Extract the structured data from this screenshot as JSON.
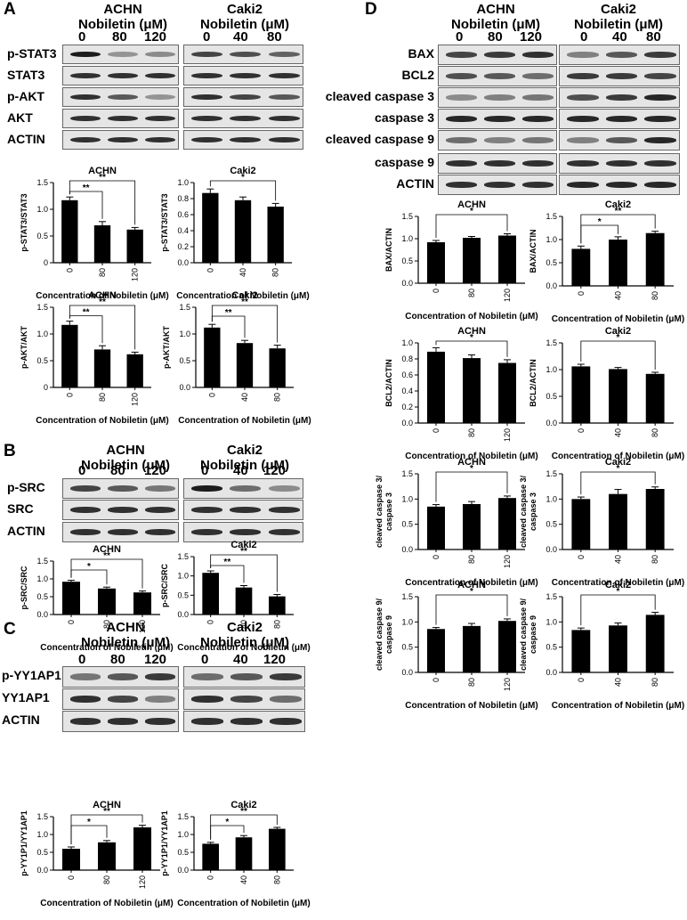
{
  "panel_labels": {
    "A": "A",
    "B": "B",
    "C": "C",
    "D": "D"
  },
  "cells": {
    "achn": "ACHN",
    "caki2": "Caki2"
  },
  "nobiletin_header": "Nobiletin (μM)",
  "doses": {
    "achn": [
      "0",
      "80",
      "120"
    ],
    "caki2_A": [
      "0",
      "40",
      "80"
    ],
    "caki2_B": [
      "0",
      "40",
      "120"
    ],
    "caki2_C": [
      "0",
      "40",
      "120"
    ],
    "caki2_D": [
      "0",
      "40",
      "80"
    ]
  },
  "proteins": {
    "A": [
      "p-STAT3",
      "STAT3",
      "p-AKT",
      "AKT",
      "ACTIN"
    ],
    "B": [
      "p-SRC",
      "SRC",
      "ACTIN"
    ],
    "C": [
      "p-YY1AP1",
      "YY1AP1",
      "ACTIN"
    ],
    "D": [
      "BAX",
      "BCL2",
      "cleaved caspase 3",
      "caspase 3",
      "cleaved caspase 9",
      "caspase 9",
      "ACTIN"
    ]
  },
  "band_intensity": {
    "A": {
      "achn": [
        [
          1.0,
          0.4,
          0.45
        ],
        [
          0.9,
          0.9,
          0.9
        ],
        [
          0.9,
          0.7,
          0.4
        ],
        [
          0.9,
          0.9,
          0.9
        ],
        [
          0.9,
          0.9,
          0.9
        ]
      ],
      "caki2": [
        [
          0.8,
          0.75,
          0.65
        ],
        [
          0.9,
          0.9,
          0.9
        ],
        [
          0.9,
          0.8,
          0.7
        ],
        [
          0.9,
          0.9,
          0.9
        ],
        [
          0.9,
          0.9,
          0.9
        ]
      ]
    },
    "B": {
      "achn": [
        [
          0.8,
          0.7,
          0.55
        ],
        [
          0.9,
          0.9,
          0.9
        ],
        [
          0.9,
          0.9,
          0.9
        ]
      ],
      "caki2": [
        [
          1.0,
          0.6,
          0.45
        ],
        [
          0.9,
          0.9,
          0.9
        ],
        [
          0.9,
          0.9,
          0.9
        ]
      ]
    },
    "C": {
      "achn": [
        [
          0.55,
          0.7,
          0.85
        ],
        [
          0.9,
          0.8,
          0.5
        ],
        [
          0.9,
          0.9,
          0.9
        ]
      ],
      "caki2": [
        [
          0.6,
          0.7,
          0.85
        ],
        [
          0.9,
          0.8,
          0.6
        ],
        [
          0.9,
          0.9,
          0.9
        ]
      ]
    },
    "D": {
      "achn": [
        [
          0.8,
          0.85,
          0.9
        ],
        [
          0.75,
          0.7,
          0.6
        ],
        [
          0.45,
          0.5,
          0.55
        ],
        [
          0.95,
          0.95,
          0.95
        ],
        [
          0.6,
          0.5,
          0.55
        ],
        [
          0.9,
          0.9,
          0.9
        ],
        [
          0.9,
          0.9,
          0.9
        ]
      ],
      "caki2": [
        [
          0.5,
          0.7,
          0.85
        ],
        [
          0.85,
          0.85,
          0.8
        ],
        [
          0.75,
          0.85,
          0.95
        ],
        [
          0.95,
          0.95,
          0.95
        ],
        [
          0.5,
          0.7,
          0.95
        ],
        [
          0.9,
          0.9,
          0.9
        ],
        [
          0.95,
          0.95,
          0.95
        ]
      ]
    }
  },
  "xlabel": "Concentration of Nobiletin (μM)",
  "chart_data": [
    {
      "id": "A1",
      "type": "bar",
      "title": "ACHN",
      "ylabel": "p-STAT3/STAT3",
      "categories": [
        "0",
        "80",
        "120"
      ],
      "values": [
        1.17,
        0.7,
        0.62
      ],
      "errors": [
        0.06,
        0.07,
        0.04
      ],
      "ylim": [
        0,
        1.5
      ],
      "yticks": [
        "0",
        "0.5",
        "1.0",
        "1.5"
      ],
      "sig": [
        {
          "from": 0,
          "to": 1,
          "label": "**"
        },
        {
          "from": 0,
          "to": 2,
          "label": "**"
        }
      ]
    },
    {
      "id": "A2",
      "type": "bar",
      "title": "Caki2",
      "ylabel": "p-STAT3/STAT3",
      "categories": [
        "0",
        "40",
        "80"
      ],
      "values": [
        0.87,
        0.78,
        0.7
      ],
      "errors": [
        0.05,
        0.04,
        0.04
      ],
      "ylim": [
        0,
        1.0
      ],
      "yticks": [
        "0.0",
        "0.2",
        "0.4",
        "0.6",
        "0.8",
        "1.0"
      ],
      "sig": [
        {
          "from": 0,
          "to": 2,
          "label": "*"
        }
      ]
    },
    {
      "id": "A3",
      "type": "bar",
      "title": "ACHN",
      "ylabel": "p-AKT/AKT",
      "categories": [
        "0",
        "80",
        "120"
      ],
      "values": [
        1.17,
        0.71,
        0.62
      ],
      "errors": [
        0.07,
        0.07,
        0.04
      ],
      "ylim": [
        0,
        1.5
      ],
      "yticks": [
        "0",
        "0.5",
        "1.0",
        "1.5"
      ],
      "sig": [
        {
          "from": 0,
          "to": 1,
          "label": "**"
        },
        {
          "from": 0,
          "to": 2,
          "label": "**"
        }
      ]
    },
    {
      "id": "A4",
      "type": "bar",
      "title": "Caki2",
      "ylabel": "p-AKT/AKT",
      "categories": [
        "0",
        "40",
        "80"
      ],
      "values": [
        1.12,
        0.83,
        0.73
      ],
      "errors": [
        0.06,
        0.05,
        0.06
      ],
      "ylim": [
        0,
        1.5
      ],
      "yticks": [
        "0.0",
        "0.5",
        "1.0",
        "1.5"
      ],
      "sig": [
        {
          "from": 0,
          "to": 1,
          "label": "**"
        },
        {
          "from": 0,
          "to": 2,
          "label": "**"
        }
      ]
    },
    {
      "id": "B1",
      "type": "bar",
      "title": "ACHN",
      "ylabel": "p-SRC/SRC",
      "categories": [
        "0",
        "80",
        "120"
      ],
      "values": [
        0.92,
        0.73,
        0.62
      ],
      "errors": [
        0.04,
        0.04,
        0.04
      ],
      "ylim": [
        0,
        1.5
      ],
      "yticks": [
        "0.0",
        "0.5",
        "1.0",
        "1.5"
      ],
      "sig": [
        {
          "from": 0,
          "to": 1,
          "label": "*"
        },
        {
          "from": 0,
          "to": 2,
          "label": "**"
        }
      ]
    },
    {
      "id": "B2",
      "type": "bar",
      "title": "Caki2",
      "ylabel": "p-SRC/SRC",
      "categories": [
        "0",
        "40",
        "80"
      ],
      "values": [
        1.08,
        0.7,
        0.47
      ],
      "errors": [
        0.05,
        0.05,
        0.05
      ],
      "ylim": [
        0,
        1.5
      ],
      "yticks": [
        "0.0",
        "0.5",
        "1.0",
        "1.5"
      ],
      "sig": [
        {
          "from": 0,
          "to": 1,
          "label": "**"
        },
        {
          "from": 0,
          "to": 2,
          "label": "**"
        }
      ]
    },
    {
      "id": "C1",
      "type": "bar",
      "title": "ACHN",
      "ylabel": "p-YY1P1/YY1AP1",
      "categories": [
        "0",
        "80",
        "120"
      ],
      "values": [
        0.6,
        0.78,
        1.2
      ],
      "errors": [
        0.05,
        0.05,
        0.06
      ],
      "ylim": [
        0,
        1.5
      ],
      "yticks": [
        "0.0",
        "0.5",
        "1.0",
        "1.5"
      ],
      "sig": [
        {
          "from": 0,
          "to": 1,
          "label": "*"
        },
        {
          "from": 0,
          "to": 2,
          "label": "**"
        }
      ]
    },
    {
      "id": "C2",
      "type": "bar",
      "title": "Caki2",
      "ylabel": "p-YY1P1/YY1AP1",
      "categories": [
        "0",
        "40",
        "80"
      ],
      "values": [
        0.74,
        0.92,
        1.16
      ],
      "errors": [
        0.04,
        0.05,
        0.04
      ],
      "ylim": [
        0,
        1.5
      ],
      "yticks": [
        "0.0",
        "0.5",
        "1.0",
        "1.5"
      ],
      "sig": [
        {
          "from": 0,
          "to": 1,
          "label": "*"
        },
        {
          "from": 0,
          "to": 2,
          "label": "**"
        }
      ]
    },
    {
      "id": "D1",
      "type": "bar",
      "title": "ACHN",
      "ylabel": "BAX/ACTIN",
      "categories": [
        "0",
        "80",
        "120"
      ],
      "values": [
        0.92,
        1.02,
        1.07
      ],
      "errors": [
        0.04,
        0.03,
        0.04
      ],
      "ylim": [
        0,
        1.5
      ],
      "yticks": [
        "0.0",
        "0.5",
        "1.0",
        "1.5"
      ],
      "sig": [
        {
          "from": 0,
          "to": 2,
          "label": "*"
        }
      ]
    },
    {
      "id": "D2",
      "type": "bar",
      "title": "Caki2",
      "ylabel": "BAX/ACTIN",
      "categories": [
        "0",
        "40",
        "80"
      ],
      "values": [
        0.8,
        1.0,
        1.14
      ],
      "errors": [
        0.06,
        0.06,
        0.04
      ],
      "ylim": [
        0,
        1.5
      ],
      "yticks": [
        "0.0",
        "0.5",
        "1.0",
        "1.5"
      ],
      "sig": [
        {
          "from": 0,
          "to": 1,
          "label": "*"
        },
        {
          "from": 0,
          "to": 2,
          "label": "**"
        }
      ]
    },
    {
      "id": "D3",
      "type": "bar",
      "title": "ACHN",
      "ylabel": "BCL2/ACTIN",
      "categories": [
        "0",
        "80",
        "120"
      ],
      "values": [
        0.89,
        0.81,
        0.75
      ],
      "errors": [
        0.05,
        0.04,
        0.04
      ],
      "ylim": [
        0,
        1.0
      ],
      "yticks": [
        "0.0",
        "0.2",
        "0.4",
        "0.6",
        "0.8",
        "1.0"
      ],
      "sig": [
        {
          "from": 0,
          "to": 2,
          "label": "*"
        }
      ]
    },
    {
      "id": "D4",
      "type": "bar",
      "title": "Caki2",
      "ylabel": "BCL2/ACTIN",
      "categories": [
        "0",
        "40",
        "80"
      ],
      "values": [
        1.06,
        1.01,
        0.92
      ],
      "errors": [
        0.04,
        0.03,
        0.03
      ],
      "ylim": [
        0,
        1.5
      ],
      "yticks": [
        "0.0",
        "0.5",
        "1.0",
        "1.5"
      ],
      "sig": [
        {
          "from": 0,
          "to": 2,
          "label": "*"
        }
      ]
    },
    {
      "id": "D5",
      "type": "bar",
      "title": "ACHN",
      "ylabel": "cleaved caspase 3/ caspase 3",
      "categories": [
        "0",
        "80",
        "120"
      ],
      "values": [
        0.85,
        0.9,
        1.02
      ],
      "errors": [
        0.04,
        0.05,
        0.04
      ],
      "ylim": [
        0,
        1.5
      ],
      "yticks": [
        "0.0",
        "0.5",
        "1.0",
        "1.5"
      ],
      "sig": [
        {
          "from": 0,
          "to": 2,
          "label": "*"
        }
      ]
    },
    {
      "id": "D6",
      "type": "bar",
      "title": "Caki2",
      "ylabel": "cleaved caspase 3/ caspase 3",
      "categories": [
        "0",
        "40",
        "80"
      ],
      "values": [
        1.0,
        1.1,
        1.2
      ],
      "errors": [
        0.04,
        0.09,
        0.04
      ],
      "ylim": [
        0,
        1.5
      ],
      "yticks": [
        "0.0",
        "0.5",
        "1.0",
        "1.5"
      ],
      "sig": [
        {
          "from": 0,
          "to": 2,
          "label": "*"
        }
      ]
    },
    {
      "id": "D7",
      "type": "bar",
      "title": "ACHN",
      "ylabel": "cleaved caspase 9/ caspase 9",
      "categories": [
        "0",
        "80",
        "120"
      ],
      "values": [
        0.86,
        0.92,
        1.02
      ],
      "errors": [
        0.03,
        0.05,
        0.04
      ],
      "ylim": [
        0,
        1.5
      ],
      "yticks": [
        "0.0",
        "0.5",
        "1.0",
        "1.5"
      ],
      "sig": [
        {
          "from": 0,
          "to": 2,
          "label": "*"
        }
      ]
    },
    {
      "id": "D8",
      "type": "bar",
      "title": "Caki2",
      "ylabel": "cleaved caspase 9/ caspase 9",
      "categories": [
        "0",
        "40",
        "80"
      ],
      "values": [
        0.84,
        0.93,
        1.14
      ],
      "errors": [
        0.04,
        0.05,
        0.05
      ],
      "ylim": [
        0,
        1.5
      ],
      "yticks": [
        "0.0",
        "0.5",
        "1.0",
        "1.5"
      ],
      "sig": [
        {
          "from": 0,
          "to": 2,
          "label": "*"
        }
      ]
    }
  ]
}
